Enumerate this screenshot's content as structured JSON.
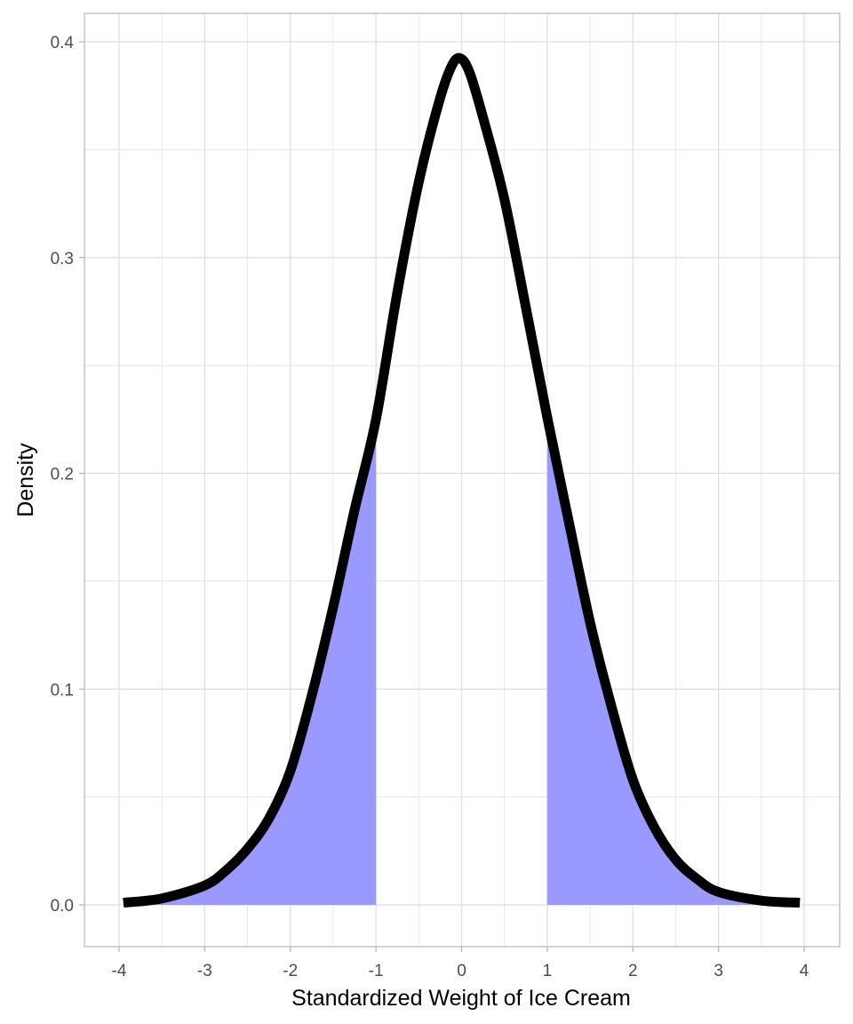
{
  "chart_data": {
    "type": "area",
    "xlabel": "Standardized Weight of Ice Cream",
    "ylabel": "Density",
    "xlim": [
      -4,
      4
    ],
    "ylim": [
      0,
      0.4
    ],
    "x_ticks": [
      "-4",
      "-3",
      "-2",
      "-1",
      "0",
      "1",
      "2",
      "3",
      "4"
    ],
    "y_ticks": [
      "0.0",
      "0.1",
      "0.2",
      "0.3",
      "0.4"
    ],
    "grid": true,
    "legend": "none",
    "shaded_regions": [
      {
        "from": -4,
        "to": -1
      },
      {
        "from": 1,
        "to": 4
      }
    ],
    "curve": {
      "x": [
        -3.95,
        -3.5,
        -3.0,
        -2.75,
        -2.5,
        -2.25,
        -2.0,
        -1.75,
        -1.5,
        -1.25,
        -1.0,
        -0.75,
        -0.5,
        -0.25,
        -0.1,
        0.0,
        0.1,
        0.25,
        0.5,
        0.75,
        1.0,
        1.25,
        1.5,
        1.75,
        2.0,
        2.25,
        2.5,
        2.75,
        3.0,
        3.5,
        3.95
      ],
      "y": [
        0.001,
        0.003,
        0.009,
        0.016,
        0.026,
        0.04,
        0.062,
        0.097,
        0.138,
        0.183,
        0.225,
        0.284,
        0.335,
        0.374,
        0.39,
        0.392,
        0.385,
        0.365,
        0.327,
        0.277,
        0.226,
        0.178,
        0.131,
        0.092,
        0.058,
        0.036,
        0.021,
        0.012,
        0.006,
        0.002,
        0.001
      ]
    },
    "colors": {
      "fill": "#9999ff",
      "line": "#000000",
      "grid": "#dedede",
      "panel_border": "#b3b3b3"
    }
  }
}
